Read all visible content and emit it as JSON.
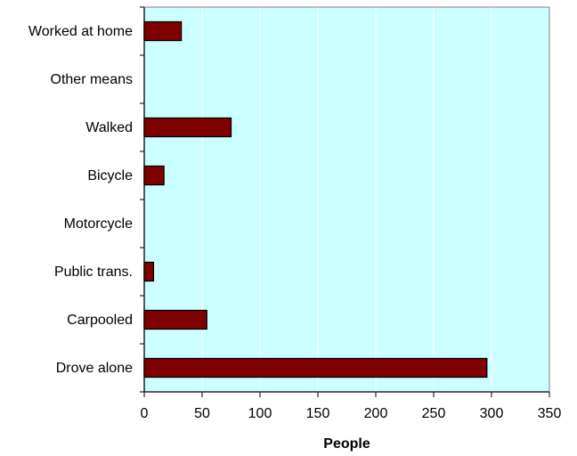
{
  "chart_data": {
    "type": "bar",
    "orientation": "horizontal",
    "categories": [
      "Drove alone",
      "Carpooled",
      "Public trans.",
      "Motorcycle",
      "Bicycle",
      "Walked",
      "Other means",
      "Worked at home"
    ],
    "values": [
      296,
      54,
      8,
      0,
      17,
      75,
      0,
      32
    ],
    "xlabel": "People",
    "ylabel": "",
    "xlim": [
      0,
      350
    ],
    "xticks": [
      0,
      50,
      100,
      150,
      200,
      250,
      300,
      350
    ],
    "grid": true,
    "legend": "none",
    "colors": {
      "bar_fill": "#800000",
      "bar_stroke": "#000000",
      "plot_background": "#ccffff",
      "gridline": "#ffffff"
    }
  }
}
